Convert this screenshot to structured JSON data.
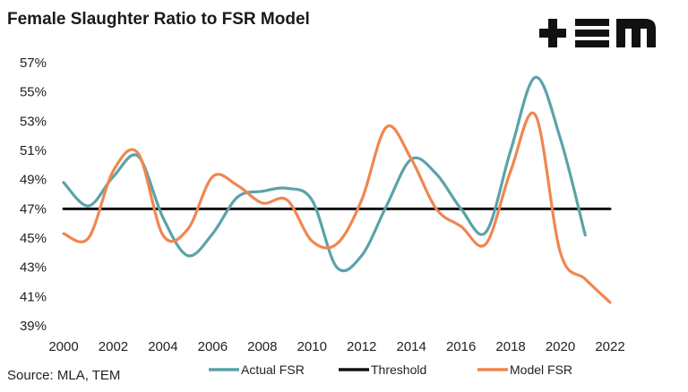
{
  "header": {
    "title": "Female Slaughter Ratio to FSR Model",
    "logo_text": "+≡m"
  },
  "footer": {
    "source": "Source: MLA, TEM"
  },
  "colors": {
    "actual": "#5aa3a8",
    "threshold": "#111111",
    "model": "#f08650"
  },
  "chart_data": {
    "type": "line",
    "title": "Female Slaughter Ratio to FSR Model",
    "xlim": [
      2000,
      2022
    ],
    "ylim": [
      39,
      57
    ],
    "y_unit": "%",
    "x_ticks": [
      2000,
      2002,
      2004,
      2006,
      2008,
      2010,
      2012,
      2014,
      2016,
      2018,
      2020,
      2022
    ],
    "y_ticks": [
      39,
      41,
      43,
      45,
      47,
      49,
      51,
      53,
      55,
      57
    ],
    "legend": "bottom",
    "grid": false,
    "series": [
      {
        "name": "Actual FSR",
        "color": "#5aa3a8",
        "x": [
          2000,
          2001,
          2002,
          2003,
          2004,
          2005,
          2006,
          2007,
          2008,
          2009,
          2010,
          2011,
          2012,
          2013,
          2014,
          2015,
          2016,
          2017,
          2018,
          2019,
          2020,
          2021
        ],
        "y": [
          48.8,
          47.2,
          49.2,
          50.6,
          46.4,
          43.8,
          45.3,
          47.8,
          48.2,
          48.4,
          47.6,
          43.0,
          43.8,
          47.2,
          50.4,
          49.4,
          47.0,
          45.4,
          51.0,
          56.0,
          51.8,
          45.2
        ]
      },
      {
        "name": "Threshold",
        "color": "#111111",
        "x": [
          2000,
          2022
        ],
        "y": [
          47.0,
          47.0
        ]
      },
      {
        "name": "Model FSR",
        "color": "#f08650",
        "x": [
          2000,
          2001,
          2002,
          2003,
          2004,
          2005,
          2006,
          2007,
          2008,
          2009,
          2010,
          2011,
          2012,
          2013,
          2014,
          2015,
          2016,
          2017,
          2018,
          2019,
          2020,
          2021,
          2022
        ],
        "y": [
          45.3,
          45.0,
          49.6,
          50.8,
          45.2,
          45.6,
          49.2,
          48.6,
          47.4,
          47.6,
          44.8,
          44.6,
          47.6,
          52.6,
          50.4,
          47.0,
          45.8,
          44.6,
          49.6,
          53.4,
          44.0,
          42.2,
          40.6
        ]
      }
    ]
  }
}
